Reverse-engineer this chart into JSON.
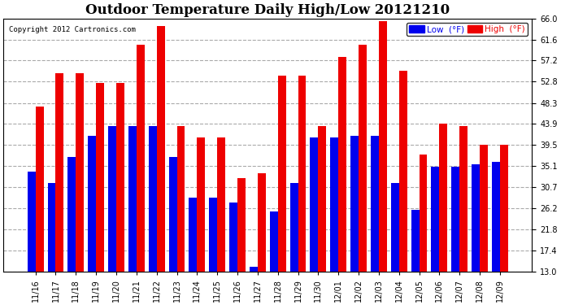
{
  "title": "Outdoor Temperature Daily High/Low 20121210",
  "copyright": "Copyright 2012 Cartronics.com",
  "legend_low": "Low  (°F)",
  "legend_high": "High  (°F)",
  "categories": [
    "11/16",
    "11/17",
    "11/18",
    "11/19",
    "11/20",
    "11/21",
    "11/22",
    "11/23",
    "11/24",
    "11/25",
    "11/26",
    "11/27",
    "11/28",
    "11/29",
    "11/30",
    "12/01",
    "12/02",
    "12/03",
    "12/04",
    "12/05",
    "12/06",
    "12/07",
    "12/08",
    "12/09"
  ],
  "low": [
    34.0,
    31.5,
    37.0,
    41.5,
    43.5,
    43.5,
    43.5,
    37.0,
    28.5,
    28.5,
    27.5,
    14.0,
    25.5,
    31.5,
    41.0,
    41.0,
    41.5,
    41.5,
    31.5,
    26.0,
    35.0,
    35.0,
    35.5,
    36.0
  ],
  "high": [
    47.5,
    54.5,
    54.5,
    52.5,
    52.5,
    60.5,
    64.5,
    43.5,
    41.0,
    41.0,
    32.5,
    33.5,
    54.0,
    54.0,
    43.5,
    58.0,
    60.5,
    65.5,
    55.0,
    37.5,
    43.9,
    43.5,
    39.5,
    39.5
  ],
  "ylim_min": 13.0,
  "ylim_max": 66.0,
  "yticks": [
    13.0,
    17.4,
    21.8,
    26.2,
    30.7,
    35.1,
    39.5,
    43.9,
    48.3,
    52.8,
    57.2,
    61.6,
    66.0
  ],
  "low_color": "#0000EE",
  "high_color": "#EE0000",
  "bg_color": "#FFFFFF",
  "plot_bg_color": "#FFFFFF",
  "grid_color": "#AAAAAA",
  "title_fontsize": 12,
  "tick_fontsize": 7,
  "bar_width": 0.4
}
